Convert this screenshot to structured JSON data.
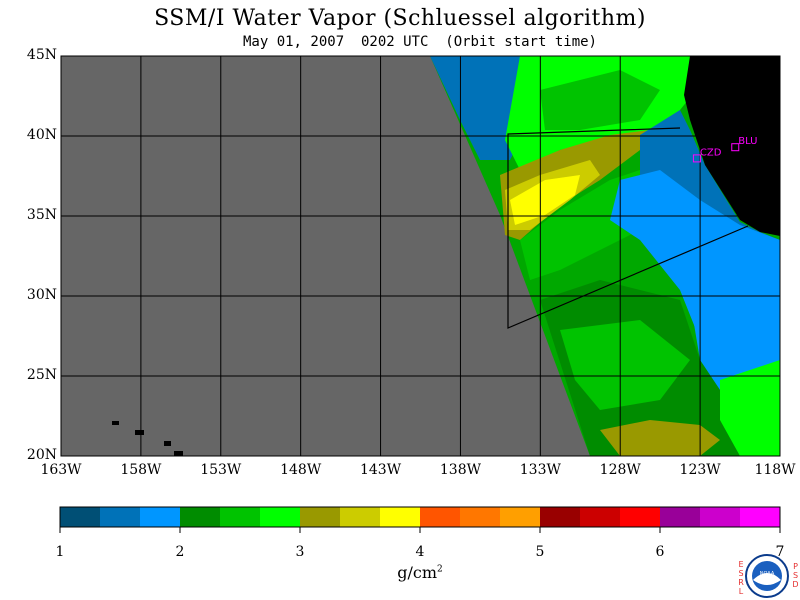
{
  "title": "SSM/I Water Vapor (Schluessel algorithm)",
  "subtitle": "May 01, 2007  0202 UTC  (Orbit start time)",
  "map": {
    "lat_range": [
      20,
      45
    ],
    "lon_range": [
      -163,
      -118
    ],
    "lat_labels": [
      "45N",
      "40N",
      "35N",
      "30N",
      "25N",
      "20N"
    ],
    "lon_labels": [
      "163W",
      "158W",
      "153W",
      "148W",
      "143W",
      "138W",
      "133W",
      "128W",
      "123W",
      "118W"
    ],
    "stations": [
      {
        "name": "CZD",
        "lat": 38.6,
        "lon": -123.2
      },
      {
        "name": "BLU",
        "lat": 39.3,
        "lon": -120.8
      }
    ],
    "colors": {
      "missing": "#666666",
      "land": "#000000",
      "grid": "#000000",
      "station": "#ff00ff"
    }
  },
  "colorbar": {
    "labels": [
      "1",
      "2",
      "3",
      "4",
      "5",
      "6",
      "7"
    ],
    "min": 1,
    "max": 7,
    "colors": [
      "#004f75",
      "#0072b8",
      "#0096ff",
      "#008c00",
      "#00c300",
      "#00ff00",
      "#999900",
      "#cccc00",
      "#ffff00",
      "#ff5500",
      "#ff7700",
      "#ff9f00",
      "#990000",
      "#cc0000",
      "#ff0000",
      "#990099",
      "#cc00cc",
      "#ff00ff"
    ],
    "unit_base": "g/cm",
    "unit_exp": "2"
  },
  "logo": {
    "left_text": [
      "E",
      "S",
      "R",
      "L"
    ],
    "center_text": "NOAA",
    "right_text": [
      "P",
      "S",
      "D"
    ]
  }
}
